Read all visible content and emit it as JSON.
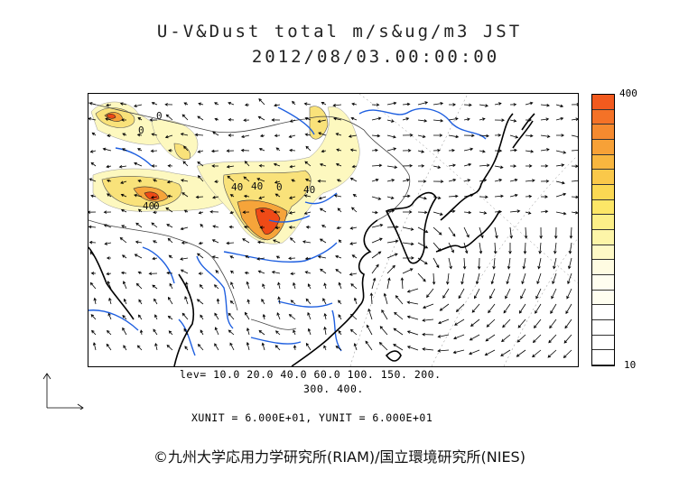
{
  "title": {
    "line1": "U-V&Dust total m/s&ug/m3 JST",
    "line2": "2012/08/03.00:00:00"
  },
  "colorbar": {
    "max_label": "400",
    "min_label": "10",
    "colors": [
      "#f25a1e",
      "#f47227",
      "#f58a2f",
      "#f7a137",
      "#f8b63f",
      "#fac84a",
      "#fbd853",
      "#fce667",
      "#fcef88",
      "#fdf5a8",
      "#fef9c6",
      "#fffce2"
    ]
  },
  "levels": {
    "line1": "lev= 10.0 20.0 40.0 60.0 100. 150. 200.",
    "line2": "300. 400."
  },
  "units": "XUNIT = 6.000E+01, YUNIT = 6.000E+01",
  "credit": "©九州大学応用力学研究所(RIAM)/国立環境研究所(NIES)",
  "contour_labels": [
    "0",
    "0",
    "40",
    "40",
    "0",
    "40",
    "0",
    "40"
  ],
  "map": {
    "coast_color": "#000000",
    "river_color": "#1e5fe0",
    "border_color": "#444444",
    "dust_colors": {
      "light": "#fdf8bf",
      "mid": "#f9e27a",
      "strong": "#f6a43a",
      "peak": "#ef4a16"
    }
  }
}
